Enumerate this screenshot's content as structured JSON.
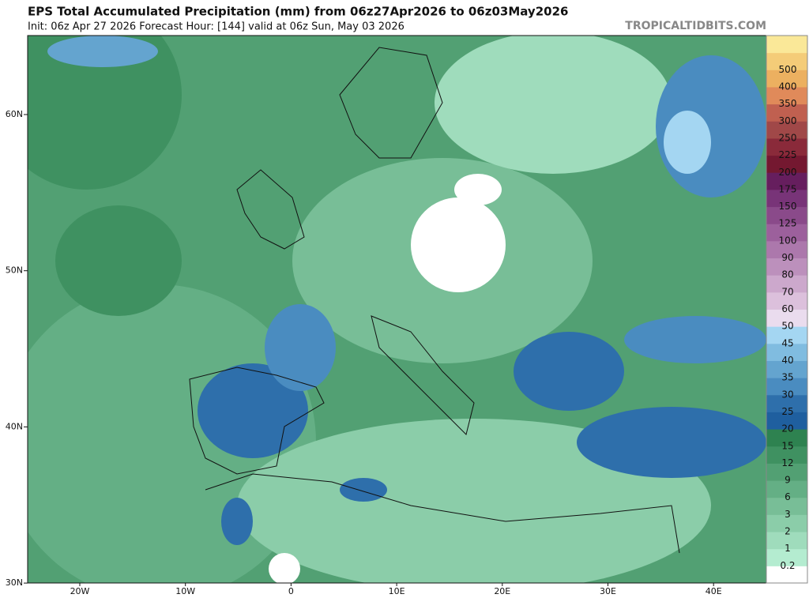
{
  "header": {
    "title": "EPS Total Accumulated Precipitation (mm) from 06z27Apr2026 to 06z03May2026",
    "subtitle": "Init: 06z Apr 27 2026   Forecast Hour: [144]   valid at 06z Sun, May 03 2026",
    "watermark": "TROPICALTIDBITS.COM"
  },
  "map": {
    "lat_labels": [
      "60N",
      "50N",
      "40N",
      "30N"
    ],
    "lon_labels": [
      "20W",
      "10W",
      "0",
      "10E",
      "20E",
      "30E",
      "40E"
    ]
  },
  "colorbar": {
    "labels": [
      "0.2",
      "1",
      "2",
      "3",
      "6",
      "9",
      "12",
      "15",
      "20",
      "25",
      "30",
      "35",
      "40",
      "45",
      "50",
      "60",
      "70",
      "80",
      "90",
      "100",
      "125",
      "150",
      "175",
      "200",
      "225",
      "250",
      "300",
      "350",
      "400",
      "500"
    ],
    "colors": [
      "#ffffff",
      "#b4ecd0",
      "#9fdcbc",
      "#8bcda9",
      "#78be97",
      "#64af85",
      "#52a073",
      "#3f9161",
      "#2e8250",
      "#1f5f9f",
      "#2e6fab",
      "#4a8cc0",
      "#64a4cf",
      "#80bce0",
      "#a4d6f2",
      "#eadcee",
      "#dcc0dc",
      "#cca8cc",
      "#bc90bc",
      "#ac78ac",
      "#9c609c",
      "#8a4a8a",
      "#783478",
      "#661e5e",
      "#741830",
      "#8a2a3a",
      "#a04848",
      "#c06050",
      "#e08a5a",
      "#ecb060",
      "#f4cc78",
      "#fae898"
    ]
  }
}
